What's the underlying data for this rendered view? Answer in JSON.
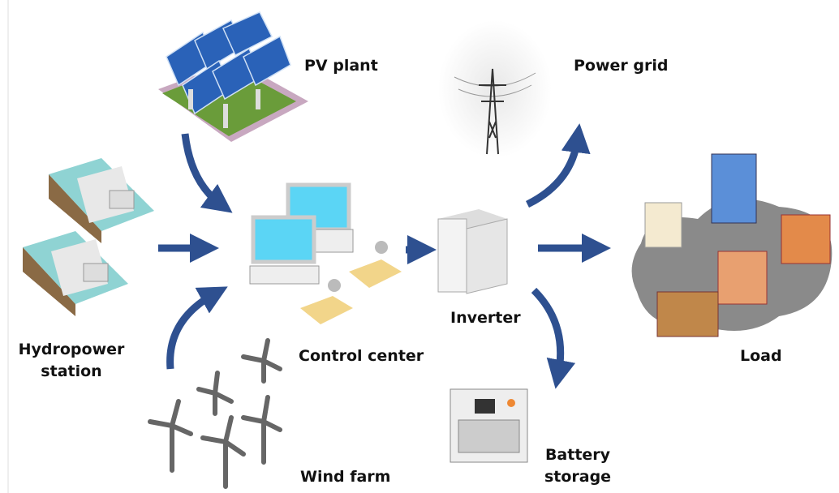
{
  "nodes": [
    {
      "label": [
        "PV plant"
      ]
    },
    {
      "label": [
        "Power grid"
      ]
    },
    {
      "label": [
        "Hydropower",
        "station"
      ]
    },
    {
      "label": [
        "Control center"
      ]
    },
    {
      "label": [
        "Inverter"
      ]
    },
    {
      "label": [
        "Load"
      ]
    },
    {
      "label": [
        "Wind farm"
      ]
    },
    {
      "label": [
        "Battery",
        "storage"
      ]
    }
  ]
}
